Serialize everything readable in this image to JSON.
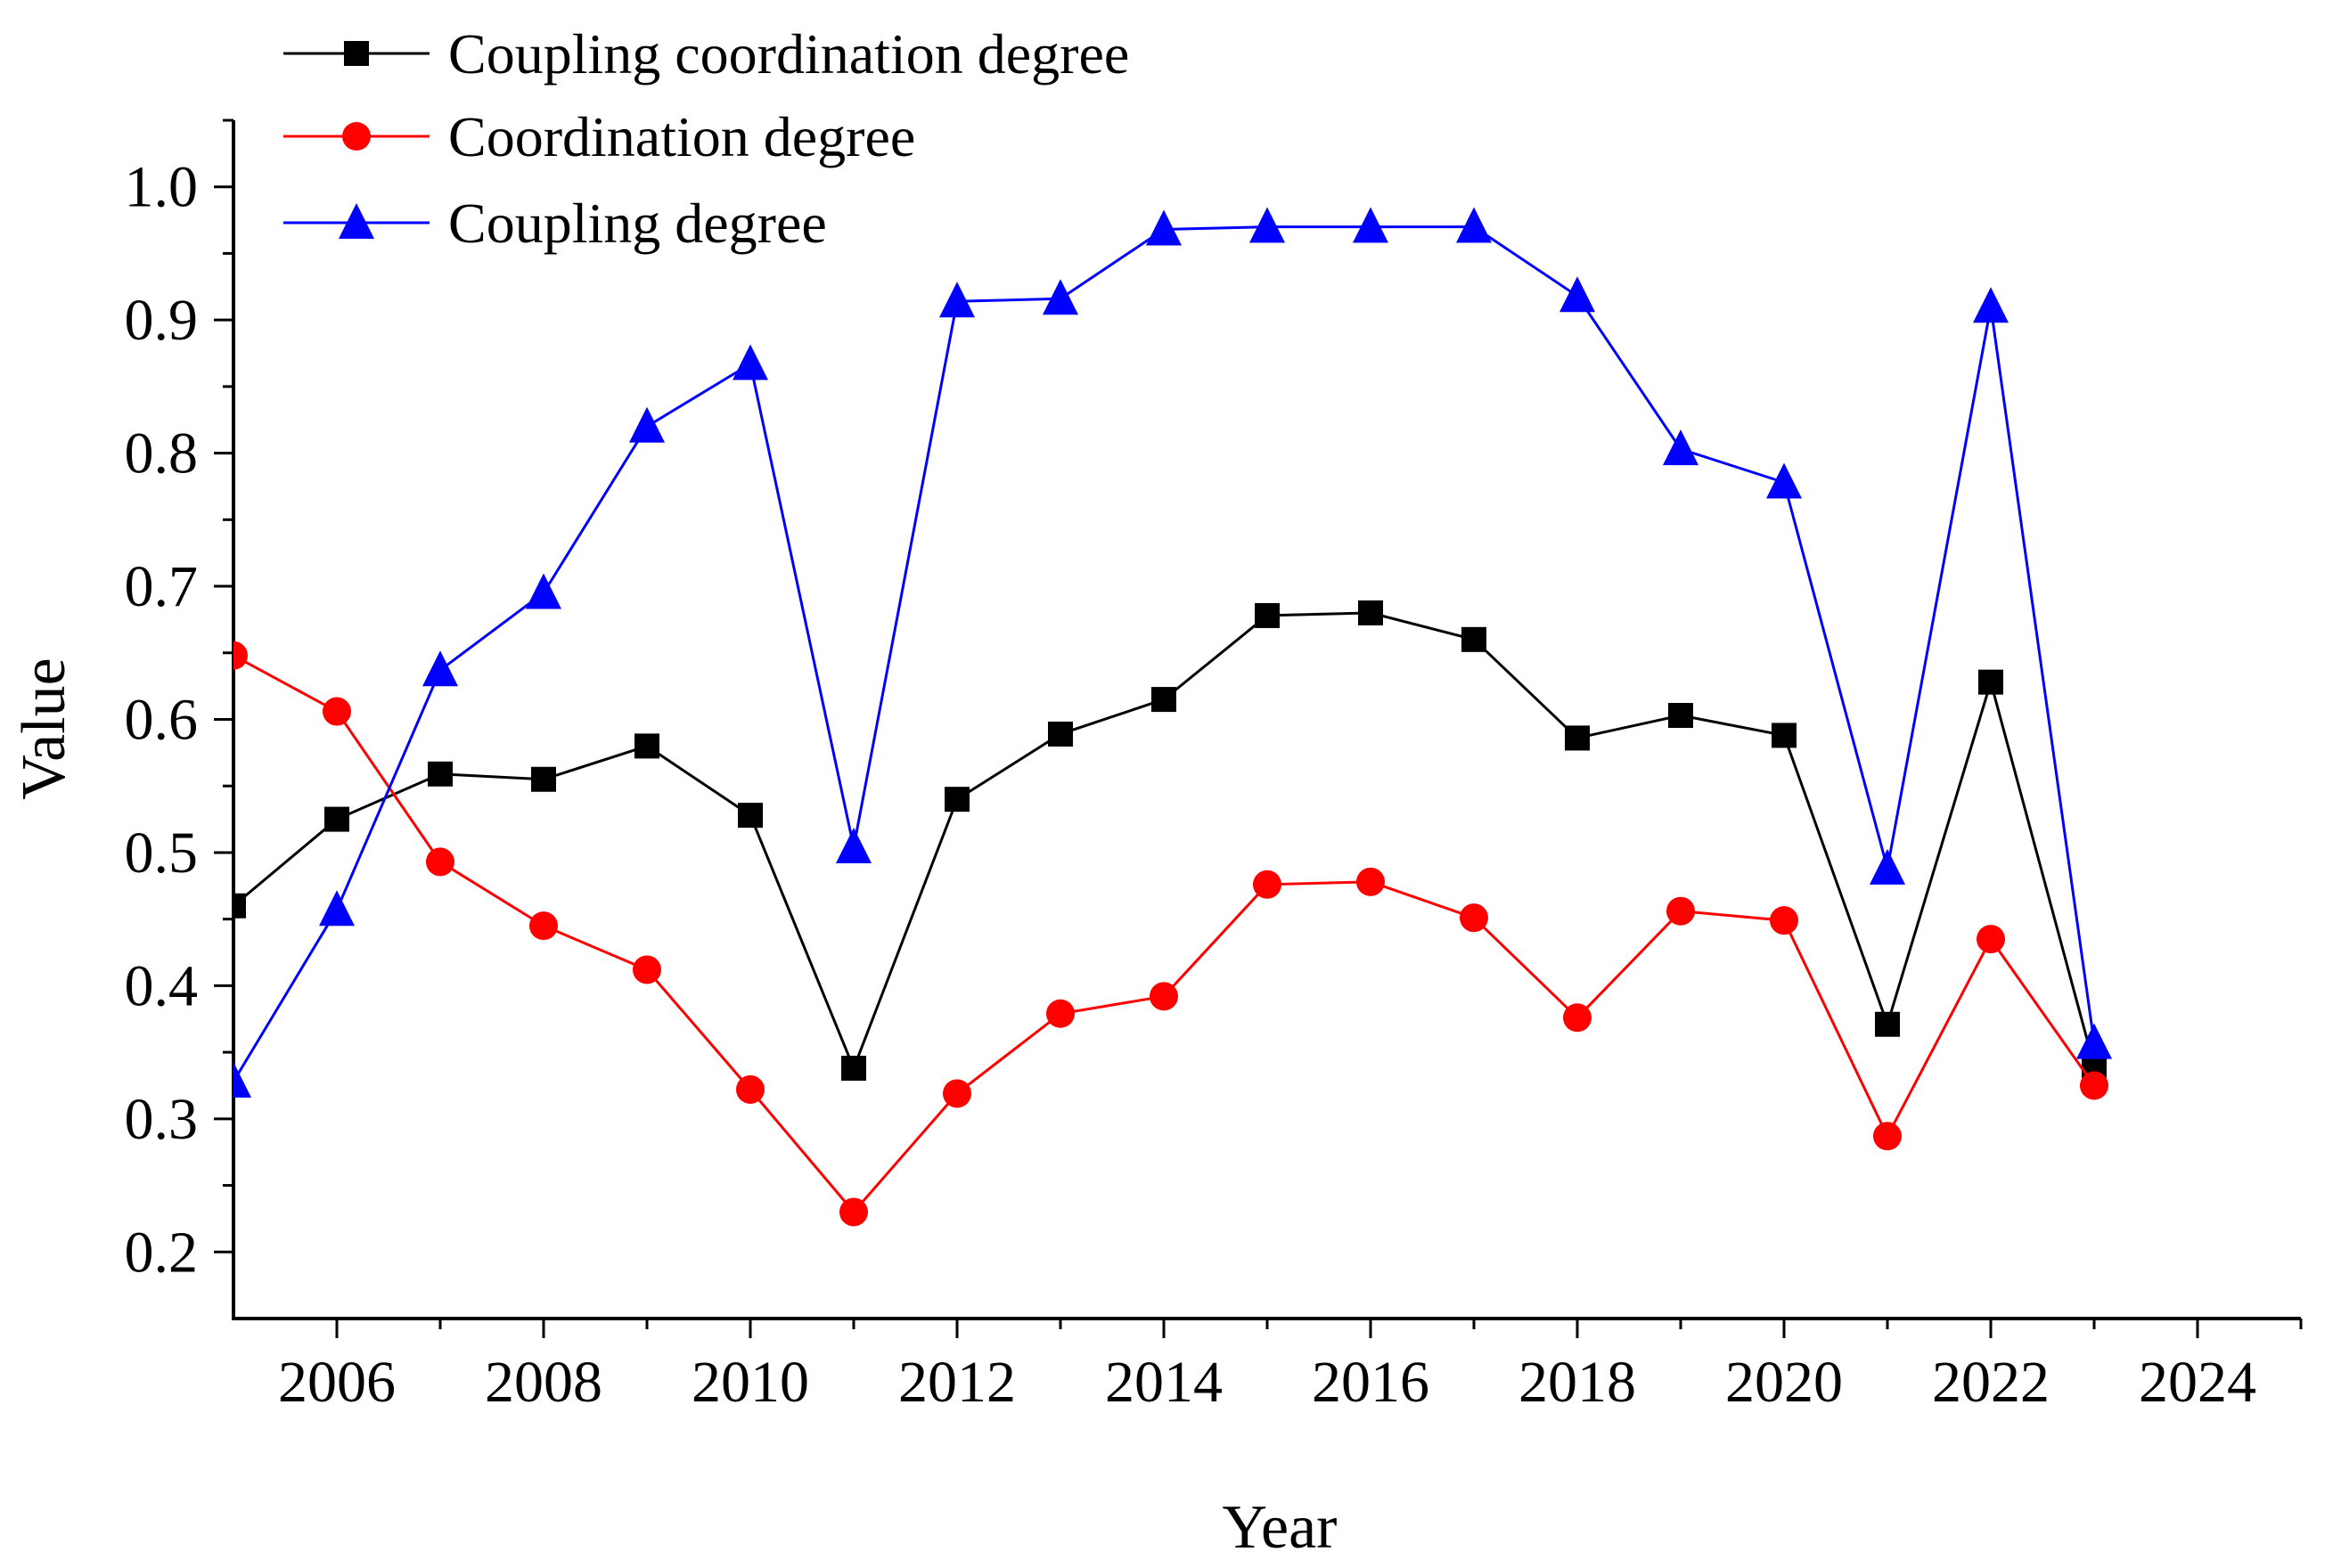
{
  "chart_data": {
    "type": "line",
    "title": "",
    "xlabel": "Year",
    "ylabel": "Value",
    "xlim": [
      2005,
      2025
    ],
    "ylim": [
      0.15,
      1.05
    ],
    "x_ticks": [
      "2006",
      "2008",
      "2010",
      "2012",
      "2014",
      "2016",
      "2018",
      "2020",
      "2022",
      "2024"
    ],
    "y_ticks": [
      "0.2",
      "0.3",
      "0.4",
      "0.5",
      "0.6",
      "0.7",
      "0.8",
      "0.9",
      "1.0"
    ],
    "legend_position": "top-left",
    "grid": false,
    "x": [
      2005,
      2006,
      2007,
      2008,
      2009,
      2010,
      2011,
      2012,
      2013,
      2014,
      2015,
      2016,
      2017,
      2018,
      2019,
      2020,
      2021,
      2022,
      2023
    ],
    "series": [
      {
        "name": "Coupling coordination degree",
        "color": "#000000",
        "marker": "square",
        "values": [
          0.46,
          0.525,
          0.559,
          0.555,
          0.58,
          0.528,
          0.338,
          0.54,
          0.589,
          0.615,
          0.678,
          0.68,
          0.66,
          0.586,
          0.603,
          0.588,
          0.371,
          0.628,
          0.34
        ]
      },
      {
        "name": "Coordination degree",
        "color": "#ff0000",
        "marker": "circle",
        "values": [
          0.648,
          0.606,
          0.493,
          0.445,
          0.412,
          0.322,
          0.23,
          0.319,
          0.379,
          0.392,
          0.476,
          0.478,
          0.451,
          0.376,
          0.456,
          0.449,
          0.287,
          0.435,
          0.325
        ]
      },
      {
        "name": "Coupling degree",
        "color": "#0000ff",
        "marker": "triangle",
        "values": [
          0.328,
          0.457,
          0.637,
          0.695,
          0.82,
          0.867,
          0.504,
          0.914,
          0.916,
          0.968,
          0.97,
          0.97,
          0.97,
          0.918,
          0.803,
          0.778,
          0.488,
          0.91,
          0.357
        ]
      }
    ]
  }
}
